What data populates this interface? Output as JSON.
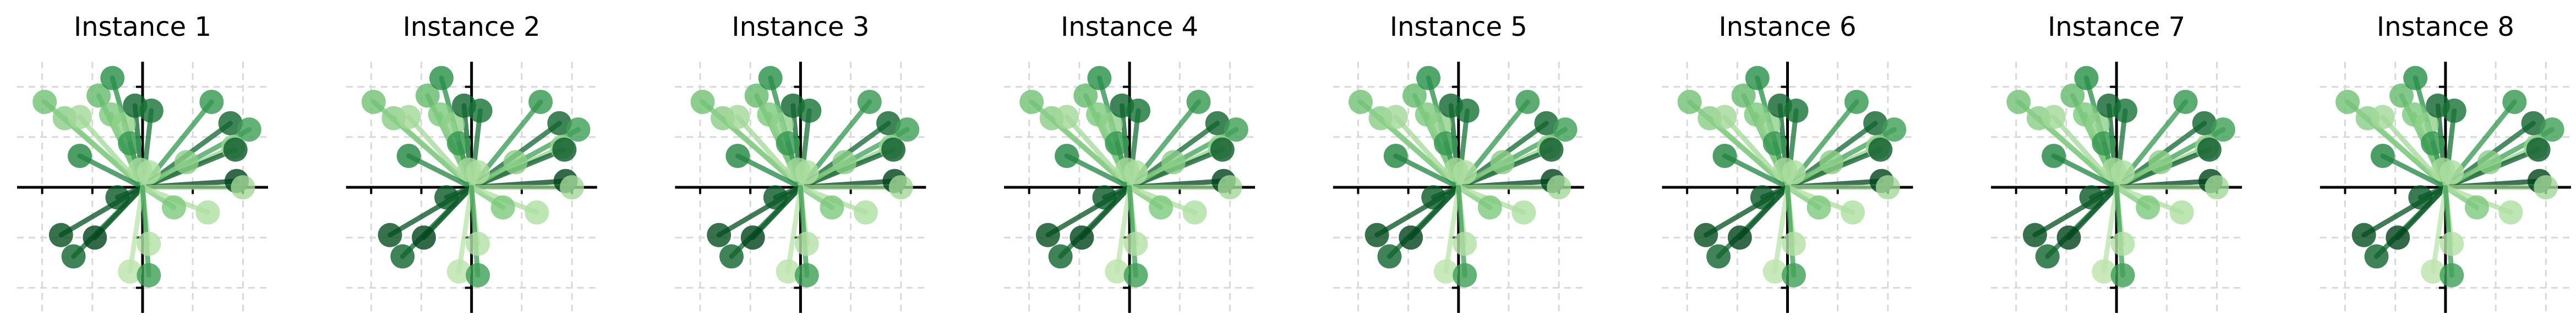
{
  "figure": {
    "background": "#ffffff"
  },
  "chart_data": {
    "type": "scatter",
    "subtype": "vectors from origin (stem-and-marker)",
    "xlim": [
      -1.0,
      1.0
    ],
    "ylim": [
      -1.0,
      1.0
    ],
    "grid": true,
    "grid_style": "dashed, light gray",
    "axes_lines_through_origin": true,
    "legend": "none",
    "colormap": "Greens",
    "colormap_stops": [
      "#c7e9b4",
      "#74c476",
      "#238b45",
      "#00441b"
    ],
    "panels": [
      {
        "title": "Instance 1"
      },
      {
        "title": "Instance 2"
      },
      {
        "title": "Instance 3"
      },
      {
        "title": "Instance 4"
      },
      {
        "title": "Instance 5"
      },
      {
        "title": "Instance 6"
      },
      {
        "title": "Instance 7"
      },
      {
        "title": "Instance 8"
      }
    ],
    "points": [
      {
        "x": -0.78,
        "y": 0.68,
        "shade": 0.35
      },
      {
        "x": -0.62,
        "y": 0.55,
        "shade": 0.25
      },
      {
        "x": -0.5,
        "y": 0.56,
        "shade": 0.15
      },
      {
        "x": -0.35,
        "y": 0.73,
        "shade": 0.4
      },
      {
        "x": -0.25,
        "y": 0.58,
        "shade": 0.3
      },
      {
        "x": -0.24,
        "y": 0.87,
        "shade": 0.65
      },
      {
        "x": -0.15,
        "y": 0.5,
        "shade": 0.22
      },
      {
        "x": -0.06,
        "y": 0.65,
        "shade": 0.85
      },
      {
        "x": 0.07,
        "y": 0.61,
        "shade": 0.78
      },
      {
        "x": -0.1,
        "y": 0.35,
        "shade": 0.6
      },
      {
        "x": -0.5,
        "y": 0.25,
        "shade": 0.7
      },
      {
        "x": 0.55,
        "y": 0.68,
        "shade": 0.6
      },
      {
        "x": 0.7,
        "y": 0.51,
        "shade": 0.85
      },
      {
        "x": 0.85,
        "y": 0.46,
        "shade": 0.55
      },
      {
        "x": 0.72,
        "y": 0.32,
        "shade": 0.2
      },
      {
        "x": 0.74,
        "y": 0.3,
        "shade": 0.9
      },
      {
        "x": 0.35,
        "y": 0.2,
        "shade": 0.25
      },
      {
        "x": 0.75,
        "y": 0.05,
        "shade": 1.0
      },
      {
        "x": 0.8,
        "y": 0.0,
        "shade": 0.15
      },
      {
        "x": 0.05,
        "y": 0.12,
        "shade": 0.1
      },
      {
        "x": -0.02,
        "y": 0.14,
        "shade": 0.12
      },
      {
        "x": -0.2,
        "y": -0.08,
        "shade": 0.9
      },
      {
        "x": -0.65,
        "y": -0.38,
        "shade": 0.95
      },
      {
        "x": -0.38,
        "y": -0.4,
        "shade": 1.0
      },
      {
        "x": -0.55,
        "y": -0.55,
        "shade": 0.85
      },
      {
        "x": 0.25,
        "y": -0.16,
        "shade": 0.3
      },
      {
        "x": 0.52,
        "y": -0.2,
        "shade": 0.1
      },
      {
        "x": 0.05,
        "y": -0.45,
        "shade": 0.08
      },
      {
        "x": -0.1,
        "y": -0.67,
        "shade": 0.05
      },
      {
        "x": 0.05,
        "y": -0.7,
        "shade": 0.55
      }
    ]
  }
}
